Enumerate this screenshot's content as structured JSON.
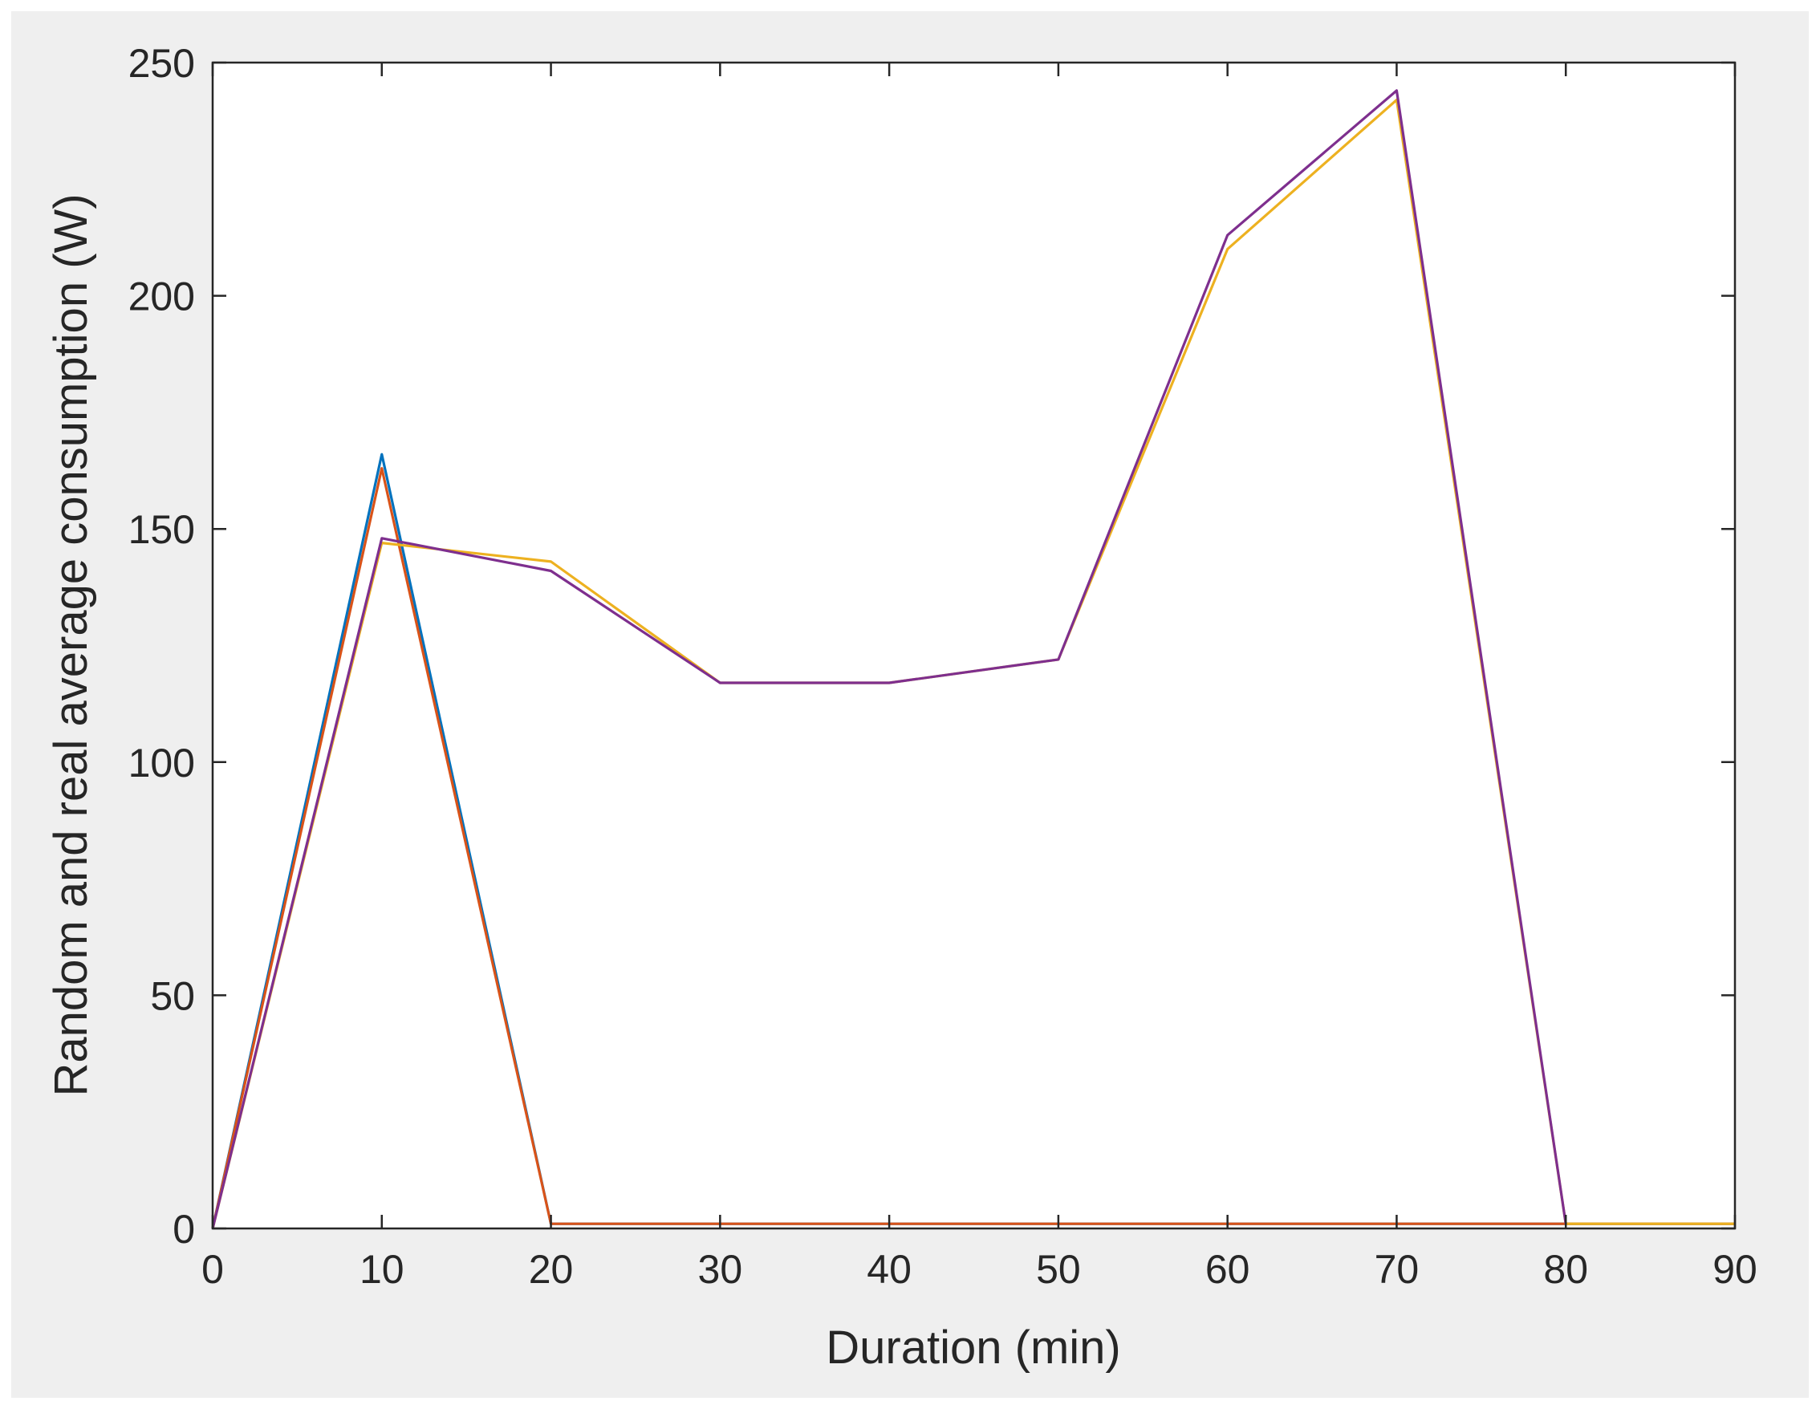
{
  "colors": {
    "figure_background": "#efefef",
    "axes_background": "#ffffff",
    "axes_edge": "#262626"
  },
  "chart_data": {
    "type": "line",
    "xlabel": "Duration (min)",
    "ylabel": "Random and real average consumption (W)",
    "xlim": [
      0,
      90
    ],
    "ylim": [
      0,
      250
    ],
    "x_ticks": [
      "0",
      "10",
      "20",
      "30",
      "40",
      "50",
      "60",
      "70",
      "80",
      "90"
    ],
    "y_ticks": [
      "0",
      "50",
      "100",
      "150",
      "200",
      "250"
    ],
    "grid": false,
    "box": true,
    "series": [
      {
        "color": "#0072bd",
        "x": [
          0,
          10,
          20,
          30,
          40,
          50,
          60,
          70,
          80,
          90
        ],
        "y": [
          0,
          166,
          1,
          1,
          1,
          1,
          1,
          1,
          1,
          1
        ]
      },
      {
        "color": "#d95319",
        "x": [
          0,
          10,
          20,
          30,
          40,
          50,
          60,
          70,
          80,
          90
        ],
        "y": [
          0,
          163,
          1,
          1,
          1,
          1,
          1,
          1,
          1,
          1
        ]
      },
      {
        "color": "#edb120",
        "x": [
          0,
          10,
          20,
          30,
          40,
          50,
          60,
          70,
          80,
          90
        ],
        "y": [
          0,
          147,
          143,
          117,
          117,
          122,
          210,
          242,
          1,
          1
        ]
      },
      {
        "color": "#7e2f8e",
        "x": [
          0,
          10,
          20,
          30,
          40,
          50,
          60,
          70,
          80
        ],
        "y": [
          0,
          148,
          141,
          117,
          117,
          122,
          213,
          244,
          1
        ]
      }
    ]
  }
}
